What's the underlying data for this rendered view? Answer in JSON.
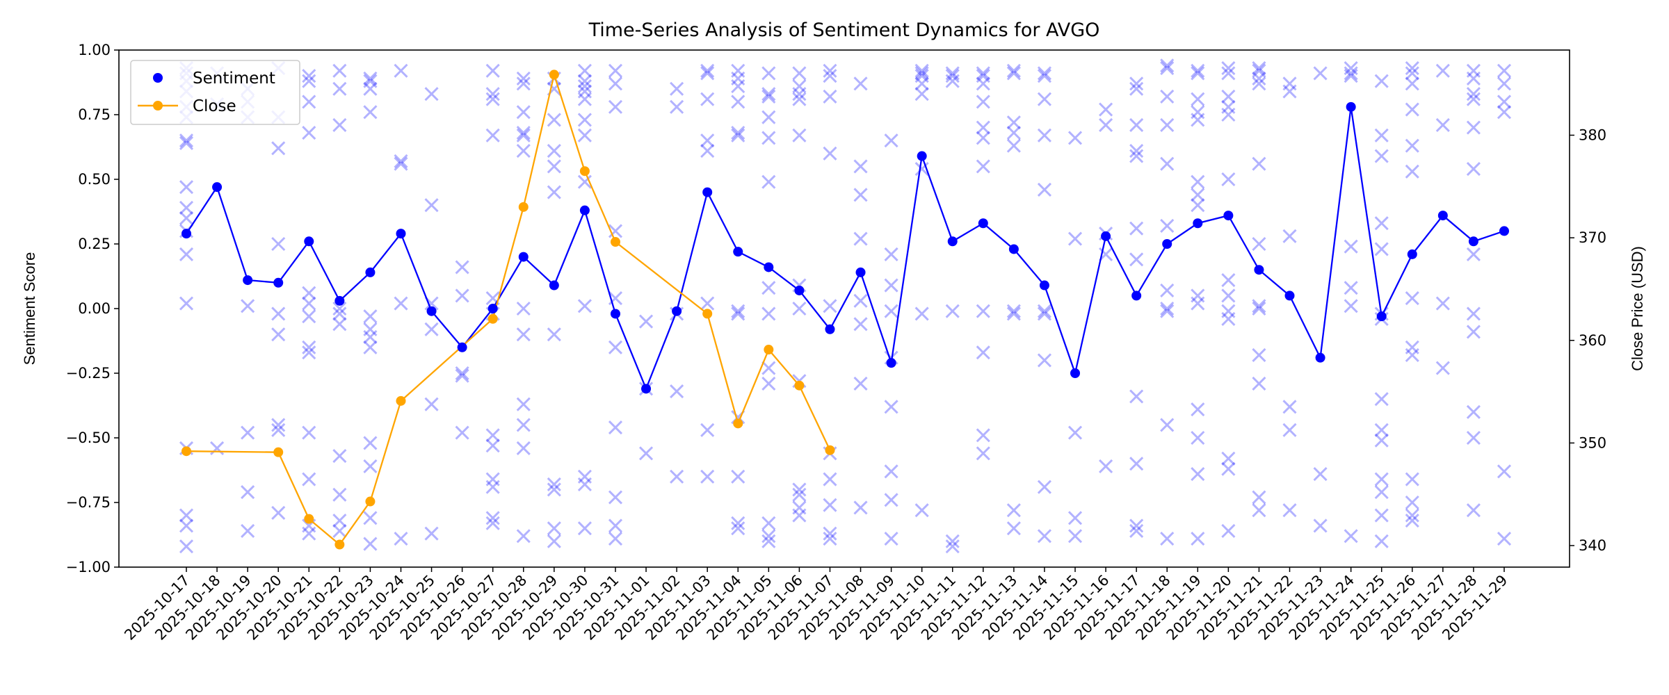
{
  "chart_data": {
    "type": "line",
    "title": "Time-Series Analysis of Sentiment Dynamics for AVGO",
    "xlabel": "",
    "ylabel": "Sentiment Score",
    "y2label": "Close Price (USD)",
    "ylim": [
      -1,
      1
    ],
    "y2lim": [
      337.9,
      388.3
    ],
    "yticks": [
      -1,
      -0.75,
      -0.5,
      -0.25,
      0,
      0.25,
      0.5,
      0.75,
      1
    ],
    "ytick_labels": [
      "−1.00",
      "−0.75",
      "−0.50",
      "−0.25",
      "0.00",
      "0.25",
      "0.50",
      "0.75",
      "1.00"
    ],
    "y2ticks": [
      340,
      350,
      360,
      370,
      380
    ],
    "y2tick_labels": [
      "340",
      "350",
      "360",
      "370",
      "380"
    ],
    "grid": false,
    "legend": {
      "placement": "top-left",
      "entries": [
        "Sentiment",
        "Close"
      ]
    },
    "colors": {
      "sentiment": "#0000ff",
      "close": "#ffa500",
      "scatter": "#0000ff"
    },
    "dates": [
      "2025-10-17",
      "2025-10-18",
      "2025-10-19",
      "2025-10-20",
      "2025-10-21",
      "2025-10-22",
      "2025-10-23",
      "2025-10-24",
      "2025-10-25",
      "2025-10-26",
      "2025-10-27",
      "2025-10-28",
      "2025-10-29",
      "2025-10-30",
      "2025-10-31",
      "2025-11-01",
      "2025-11-02",
      "2025-11-03",
      "2025-11-04",
      "2025-11-05",
      "2025-11-06",
      "2025-11-07",
      "2025-11-08",
      "2025-11-09",
      "2025-11-10",
      "2025-11-11",
      "2025-11-12",
      "2025-11-13",
      "2025-11-14",
      "2025-11-15",
      "2025-11-16",
      "2025-11-17",
      "2025-11-18",
      "2025-11-19",
      "2025-11-20",
      "2025-11-21",
      "2025-11-22",
      "2025-11-23",
      "2025-11-24",
      "2025-11-25",
      "2025-11-26",
      "2025-11-27",
      "2025-11-28",
      "2025-11-29"
    ],
    "series": [
      {
        "name": "Sentiment",
        "axis": "left",
        "values": [
          0.29,
          0.47,
          0.11,
          0.1,
          0.26,
          0.03,
          0.14,
          0.29,
          -0.01,
          -0.15,
          0.0,
          0.2,
          0.09,
          0.38,
          -0.02,
          -0.31,
          -0.01,
          0.45,
          0.22,
          0.16,
          0.07,
          -0.08,
          0.14,
          -0.21,
          0.59,
          0.26,
          0.33,
          0.23,
          0.09,
          -0.25,
          0.28,
          0.05,
          0.25,
          0.33,
          0.36,
          0.15,
          0.05,
          -0.19,
          0.78,
          -0.03,
          0.21,
          0.36,
          0.26,
          0.3
        ]
      },
      {
        "name": "Close",
        "axis": "right",
        "points": [
          [
            "2025-10-17",
            349.2
          ],
          [
            "2025-10-20",
            349.1
          ],
          [
            "2025-10-21",
            342.6
          ],
          [
            "2025-10-22",
            340.1
          ],
          [
            "2025-10-23",
            344.3
          ],
          [
            "2025-10-24",
            354.1
          ],
          [
            "2025-10-27",
            362.1
          ],
          [
            "2025-10-28",
            373.0
          ],
          [
            "2025-10-29",
            385.9
          ],
          [
            "2025-10-30",
            376.5
          ],
          [
            "2025-10-31",
            369.6
          ],
          [
            "2025-11-03",
            362.6
          ],
          [
            "2025-11-04",
            351.9
          ],
          [
            "2025-11-05",
            359.1
          ],
          [
            "2025-11-06",
            355.6
          ],
          [
            "2025-11-07",
            349.3
          ]
        ]
      }
    ],
    "scatter_scores": [
      [
        0.93,
        0.91,
        0.88,
        0.84,
        0.78,
        0.74,
        0.65,
        0.64,
        0.47,
        0.39,
        0.35,
        0.3,
        0.21,
        0.02,
        -0.54,
        -0.8,
        -0.84,
        -0.92
      ],
      [
        0.91,
        0.79,
        -0.54
      ],
      [
        0.85,
        0.8,
        0.74,
        0.01,
        -0.48,
        -0.71,
        -0.86
      ],
      [
        0.93,
        0.74,
        0.62,
        0.25,
        -0.02,
        -0.1,
        -0.45,
        -0.47,
        -0.79
      ],
      [
        0.9,
        0.88,
        0.8,
        0.68,
        0.06,
        0.02,
        -0.03,
        -0.15,
        -0.17,
        -0.48,
        -0.66,
        -0.84,
        -0.87
      ],
      [
        0.92,
        0.85,
        0.71,
        0.0,
        -0.02,
        -0.06,
        -0.57,
        -0.72,
        -0.82,
        -0.86
      ],
      [
        0.89,
        0.88,
        0.85,
        0.76,
        -0.03,
        -0.08,
        -0.11,
        -0.15,
        -0.52,
        -0.61,
        -0.81,
        -0.91
      ],
      [
        0.92,
        0.57,
        0.56,
        0.02,
        -0.89
      ],
      [
        0.83,
        0.4,
        0.02,
        -0.08,
        -0.37,
        -0.87
      ],
      [
        0.16,
        0.05,
        -0.25,
        -0.26,
        -0.48
      ],
      [
        0.92,
        0.83,
        0.81,
        0.67,
        0.04,
        -0.02,
        -0.49,
        -0.53,
        -0.66,
        -0.69,
        -0.81,
        -0.83
      ],
      [
        0.89,
        0.87,
        0.76,
        0.68,
        0.67,
        0.61,
        0.0,
        -0.1,
        -0.37,
        -0.45,
        -0.54,
        -0.88
      ],
      [
        0.89,
        0.85,
        0.73,
        0.61,
        0.55,
        0.45,
        -0.1,
        -0.68,
        -0.7,
        -0.85,
        -0.9
      ],
      [
        0.92,
        0.88,
        0.86,
        0.84,
        0.81,
        0.73,
        0.67,
        0.49,
        0.01,
        -0.65,
        -0.68,
        -0.85
      ],
      [
        0.92,
        0.87,
        0.78,
        0.3,
        0.04,
        -0.15,
        -0.46,
        -0.73,
        -0.84,
        -0.89
      ],
      [
        -0.05,
        -0.31,
        -0.56
      ],
      [
        0.85,
        0.78,
        -0.02,
        -0.32,
        -0.65
      ],
      [
        0.92,
        0.91,
        0.81,
        0.65,
        0.61,
        0.02,
        -0.47,
        -0.65
      ],
      [
        0.92,
        0.89,
        0.86,
        0.8,
        0.68,
        0.67,
        -0.01,
        -0.02,
        -0.42,
        -0.65,
        -0.83,
        -0.85
      ],
      [
        0.91,
        0.83,
        0.82,
        0.74,
        0.66,
        0.49,
        0.08,
        -0.02,
        -0.23,
        -0.29,
        -0.83,
        -0.88,
        -0.9
      ],
      [
        0.91,
        0.86,
        0.83,
        0.81,
        0.67,
        0.09,
        0.0,
        -0.28,
        -0.7,
        -0.72,
        -0.77,
        -0.8
      ],
      [
        0.92,
        0.9,
        0.82,
        0.6,
        0.01,
        -0.56,
        -0.66,
        -0.76,
        -0.87,
        -0.89
      ],
      [
        0.87,
        0.55,
        0.44,
        0.27,
        0.03,
        -0.06,
        -0.29,
        -0.77
      ],
      [
        0.65,
        0.21,
        0.09,
        -0.01,
        -0.19,
        -0.38,
        -0.63,
        -0.74,
        -0.89
      ],
      [
        0.92,
        0.91,
        0.9,
        0.87,
        0.83,
        0.54,
        -0.02,
        -0.78
      ],
      [
        0.91,
        0.9,
        0.88,
        -0.01,
        -0.9,
        -0.92
      ],
      [
        0.91,
        0.9,
        0.87,
        0.8,
        0.7,
        0.66,
        0.55,
        -0.01,
        -0.17,
        -0.49,
        -0.56
      ],
      [
        0.92,
        0.91,
        0.72,
        0.68,
        0.63,
        -0.01,
        -0.02,
        -0.78,
        -0.85
      ],
      [
        0.91,
        0.9,
        0.81,
        0.67,
        0.46,
        -0.01,
        -0.02,
        -0.2,
        -0.69,
        -0.88
      ],
      [
        0.66,
        0.27,
        -0.48,
        -0.81,
        -0.88
      ],
      [
        0.77,
        0.71,
        0.29,
        0.21,
        -0.61
      ],
      [
        0.87,
        0.85,
        0.71,
        0.61,
        0.59,
        0.31,
        0.19,
        -0.34,
        -0.6,
        -0.84,
        -0.86
      ],
      [
        0.94,
        0.93,
        0.82,
        0.71,
        0.56,
        0.32,
        0.07,
        0.0,
        -0.01,
        -0.45,
        -0.89
      ],
      [
        0.92,
        0.91,
        0.81,
        0.76,
        0.73,
        0.49,
        0.44,
        0.4,
        0.05,
        0.02,
        -0.39,
        -0.5,
        -0.64,
        -0.89
      ],
      [
        0.93,
        0.91,
        0.82,
        0.78,
        0.75,
        0.5,
        0.11,
        0.05,
        -0.01,
        -0.04,
        -0.58,
        -0.62,
        -0.86
      ],
      [
        0.93,
        0.92,
        0.89,
        0.87,
        0.56,
        0.25,
        0.01,
        0.0,
        -0.18,
        -0.29,
        -0.73,
        -0.78
      ],
      [
        0.87,
        0.84,
        0.28,
        -0.38,
        -0.47,
        -0.78
      ],
      [
        0.91,
        -0.64,
        -0.84
      ],
      [
        0.93,
        0.91,
        0.9,
        0.24,
        0.08,
        0.01,
        -0.88
      ],
      [
        0.88,
        0.67,
        0.59,
        0.33,
        0.23,
        -0.02,
        -0.04,
        -0.35,
        -0.47,
        -0.51,
        -0.66,
        -0.71,
        -0.8,
        -0.9
      ],
      [
        0.93,
        0.91,
        0.87,
        0.77,
        0.63,
        0.53,
        0.04,
        -0.15,
        -0.18,
        -0.66,
        -0.75,
        -0.8,
        -0.82
      ],
      [
        0.92,
        0.71,
        0.02,
        -0.23
      ],
      [
        0.92,
        0.89,
        0.83,
        0.81,
        0.7,
        0.54,
        0.21,
        -0.02,
        -0.09,
        -0.4,
        -0.5,
        -0.78
      ],
      [
        0.92,
        0.87,
        0.8,
        0.76,
        -0.63,
        -0.89
      ]
    ]
  }
}
